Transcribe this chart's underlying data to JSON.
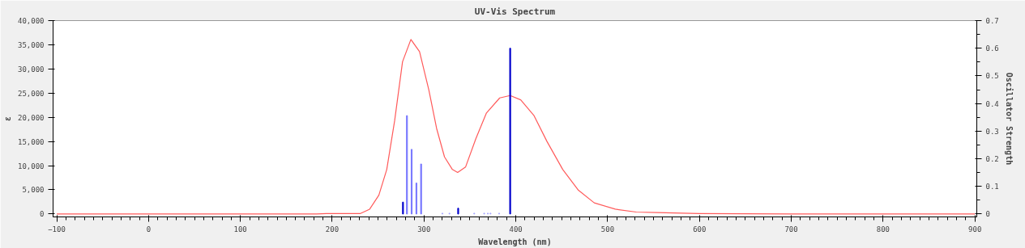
{
  "chart_data": {
    "type": "line",
    "title": "UV-Vis Spectrum",
    "xlabel": "Wavelength (nm)",
    "ylabel": "ε",
    "y2label": "Oscillator Strength",
    "xlim": [
      -104,
      902
    ],
    "xticks": [
      -100,
      0,
      100,
      200,
      300,
      400,
      500,
      600,
      700,
      800,
      900
    ],
    "ylim": [
      -600,
      40000
    ],
    "yticks": [
      0,
      {
        "value": 5000,
        "label": "5,000"
      },
      {
        "value": 10000,
        "label": "10,000"
      },
      {
        "value": 15000,
        "label": "15,000"
      },
      {
        "value": 20000,
        "label": "20,000"
      },
      {
        "value": 25000,
        "label": "25,000"
      },
      {
        "value": 30000,
        "label": "30,000"
      },
      {
        "value": 35000,
        "label": "35,000"
      },
      {
        "value": 40000,
        "label": "40,000"
      }
    ],
    "y2lim": [
      -0.0105,
      0.7
    ],
    "y2ticks": [
      0,
      0.1,
      0.2,
      0.3,
      0.4,
      0.5,
      0.6,
      0.7
    ],
    "grid": false,
    "line_style": "solid",
    "marker": "none",
    "series": [
      {
        "color": "#ff5a5a",
        "x": [
          -100,
          0,
          100,
          183,
          193.6,
          230.8,
          240.8,
          250.8,
          259.4,
          268,
          276.6,
          285.7,
          295.1,
          305.2,
          313.7,
          322.3,
          330.9,
          336.6,
          345.2,
          356.5,
          368,
          382.4,
          393.8,
          405.3,
          419.6,
          433.9,
          451.1,
          468.2,
          485.4,
          508.3,
          531.2,
          554.1,
          600,
          700,
          800,
          900
        ],
        "values": [
          0,
          0,
          0,
          0,
          100,
          100,
          1000,
          3900,
          9200,
          19300,
          31500,
          36100,
          33600,
          25700,
          17700,
          11800,
          9200,
          8600,
          9700,
          15600,
          20900,
          24000,
          24500,
          23600,
          20400,
          15000,
          9200,
          4900,
          2300,
          1000,
          400,
          300,
          100,
          0,
          0,
          0
        ]
      },
      {
        "type": "bar",
        "axis": "y2",
        "x": [
          277.1,
          281.4,
          286.5,
          291.7,
          296.8,
          320.0,
          327.7,
          337.2,
          354.7,
          365.5,
          369.5,
          372.4,
          381.8,
          393.8
        ],
        "values": [
          0.043,
          0.356,
          0.234,
          0.112,
          0.181,
          0.003,
          0.003,
          0.021,
          0.003,
          0.003,
          0.003,
          0.003,
          0.003,
          0.6
        ],
        "colors": [
          "#0000cc",
          "#7777ff",
          "#7777ff",
          "#7777ff",
          "#7777ff",
          "#aaaaff",
          "#aaaaff",
          "#0000cc",
          "#aaaaff",
          "#aaaaff",
          "#aaaaff",
          "#aaaaff",
          "#aaaaff",
          "#0000cc"
        ]
      }
    ]
  }
}
